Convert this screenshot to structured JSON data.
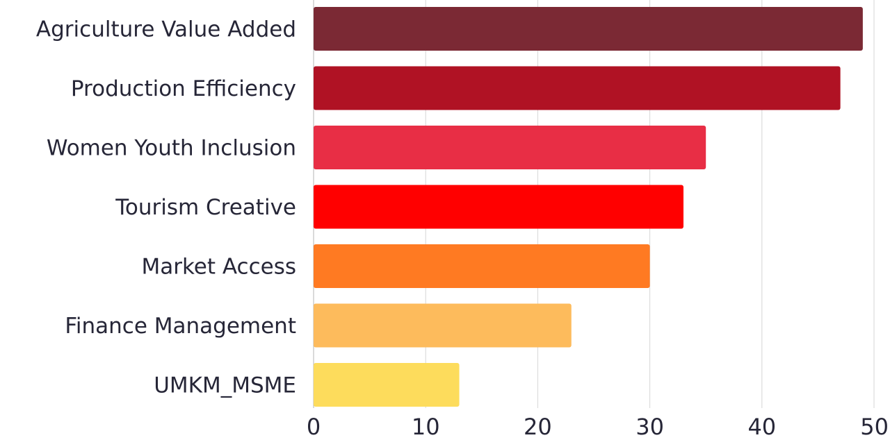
{
  "chart_data": {
    "type": "bar",
    "orientation": "horizontal",
    "categories": [
      "Agriculture Value Added",
      "Production Efficiency",
      "Women Youth Inclusion",
      "Tourism Creative",
      "Market Access",
      "Finance Management",
      "UMKM_MSME"
    ],
    "values": [
      49,
      47,
      35,
      33,
      30,
      23,
      13
    ],
    "colors": [
      "#7b2934",
      "#b01224",
      "#e82e45",
      "#ff0000",
      "#ff7a22",
      "#fdbb5c",
      "#fddc5c"
    ],
    "title": "",
    "xlabel": "",
    "ylabel": "",
    "xlim": [
      0,
      50
    ],
    "xticks": [
      0,
      10,
      20,
      30,
      40,
      50
    ],
    "grid": "vertical",
    "legend": "none"
  }
}
